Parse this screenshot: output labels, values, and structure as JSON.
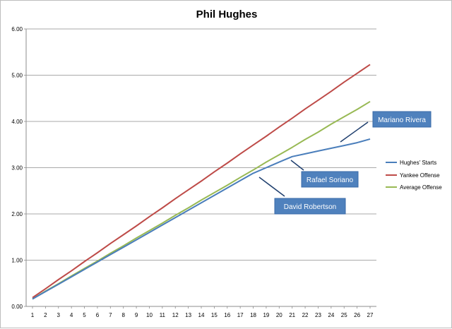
{
  "chart_data": {
    "type": "line",
    "title": "Phil Hughes",
    "xlabel": "",
    "ylabel": "",
    "x": [
      1,
      2,
      3,
      4,
      5,
      6,
      7,
      8,
      9,
      10,
      11,
      12,
      13,
      14,
      15,
      16,
      17,
      18,
      19,
      20,
      21,
      22,
      23,
      24,
      25,
      26,
      27
    ],
    "x_tick_labels": [
      "1",
      "2",
      "3",
      "4",
      "5",
      "6",
      "7",
      "8",
      "9",
      "10",
      "11",
      "12",
      "13",
      "14",
      "15",
      "16",
      "17",
      "18",
      "19",
      "20",
      "21",
      "22",
      "23",
      "24",
      "25",
      "26",
      "27"
    ],
    "ylim": [
      0,
      6
    ],
    "y_ticks": [
      0,
      1,
      2,
      3,
      4,
      5,
      6
    ],
    "y_tick_labels": [
      "0.00",
      "1.00",
      "2.00",
      "3.00",
      "4.00",
      "5.00",
      "6.00"
    ],
    "grid": "horizontal",
    "legend_position": "right",
    "series": [
      {
        "name": "Hughes' Starts",
        "color": "#4a7ebb",
        "values": [
          0.16,
          0.32,
          0.48,
          0.64,
          0.8,
          0.96,
          1.12,
          1.28,
          1.44,
          1.6,
          1.76,
          1.92,
          2.08,
          2.24,
          2.4,
          2.56,
          2.72,
          2.88,
          3.0,
          3.12,
          3.24,
          3.3,
          3.36,
          3.42,
          3.48,
          3.54,
          3.62
        ]
      },
      {
        "name": "Yankee Offense",
        "color": "#be4b48",
        "values": [
          0.19,
          0.38,
          0.58,
          0.77,
          0.97,
          1.16,
          1.36,
          1.55,
          1.74,
          1.94,
          2.13,
          2.33,
          2.52,
          2.71,
          2.91,
          3.1,
          3.3,
          3.49,
          3.68,
          3.88,
          4.07,
          4.27,
          4.46,
          4.65,
          4.85,
          5.04,
          5.23
        ]
      },
      {
        "name": "Average Offense",
        "color": "#98b954",
        "values": [
          0.16,
          0.33,
          0.49,
          0.66,
          0.82,
          0.98,
          1.15,
          1.31,
          1.48,
          1.64,
          1.8,
          1.97,
          2.13,
          2.3,
          2.46,
          2.62,
          2.79,
          2.95,
          3.12,
          3.28,
          3.44,
          3.61,
          3.77,
          3.94,
          4.1,
          4.26,
          4.43
        ]
      }
    ],
    "annotations": [
      {
        "text": "Mariano Rivera",
        "x": 25,
        "y": 3.52
      },
      {
        "text": "Rafael Soriano",
        "x": 21,
        "y": 3.24
      },
      {
        "text": "David Robertson",
        "x": 18,
        "y": 2.8
      }
    ]
  }
}
